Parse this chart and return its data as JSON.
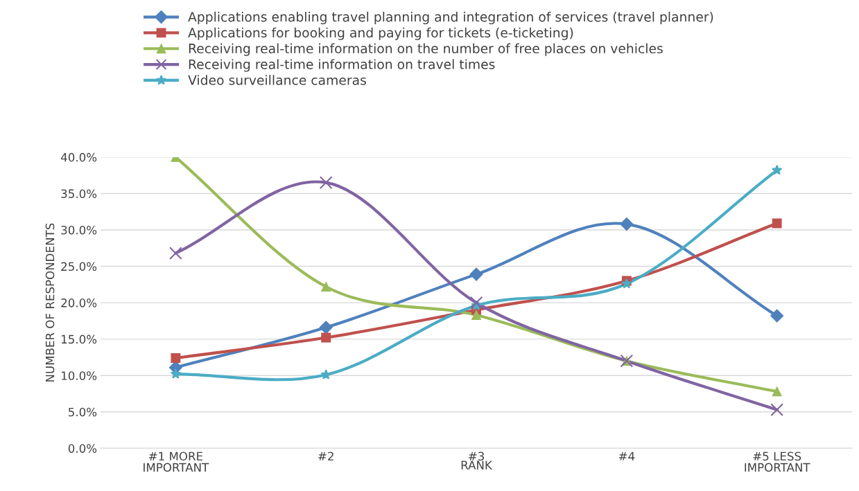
{
  "chart_data": {
    "type": "line",
    "xlabel": "RANK",
    "ylabel": "NUMBER OF RESPONDENTS",
    "categories": [
      "#1 MORE\nIMPORTANT",
      "#2",
      "#3",
      "#4",
      "#5 LESS\nIMPORTANT"
    ],
    "series": [
      {
        "name": "Applications enabling travel planning and integration of services (travel planner)",
        "color": "#4f81bd",
        "marker": "diamond",
        "values": [
          11.1,
          16.6,
          23.9,
          30.8,
          18.2
        ]
      },
      {
        "name": "Applications for booking and paying for tickets (e-ticketing)",
        "color": "#c0504d",
        "marker": "square",
        "values": [
          12.4,
          15.2,
          19.0,
          23.0,
          30.9
        ]
      },
      {
        "name": "Receiving real-time information on the number of free places on vehicles",
        "color": "#9bbb59",
        "marker": "triangle",
        "values": [
          40.0,
          22.2,
          18.3,
          12.0,
          7.8
        ]
      },
      {
        "name": "Receiving real-time information on travel times",
        "color": "#8064a2",
        "marker": "cross",
        "values": [
          26.8,
          36.5,
          20.0,
          12.0,
          5.3
        ]
      },
      {
        "name": "Video surveillance cameras",
        "color": "#4bacc6",
        "marker": "star",
        "values": [
          10.2,
          10.1,
          19.6,
          22.6,
          38.2
        ]
      }
    ],
    "ylim": [
      0,
      40
    ],
    "yticks": [
      {
        "value": 0,
        "label": "0.0%"
      },
      {
        "value": 5,
        "label": "5.0%"
      },
      {
        "value": 10,
        "label": "10.0%"
      },
      {
        "value": 15,
        "label": "15.0%"
      },
      {
        "value": 20,
        "label": "20.0%"
      },
      {
        "value": 25,
        "label": "25.0%"
      },
      {
        "value": 30,
        "label": "30.0%"
      },
      {
        "value": 35,
        "label": "35.0%"
      },
      {
        "value": 40,
        "label": "40.0%"
      }
    ],
    "grid": "y",
    "legend": "top",
    "line_style": "solid"
  }
}
